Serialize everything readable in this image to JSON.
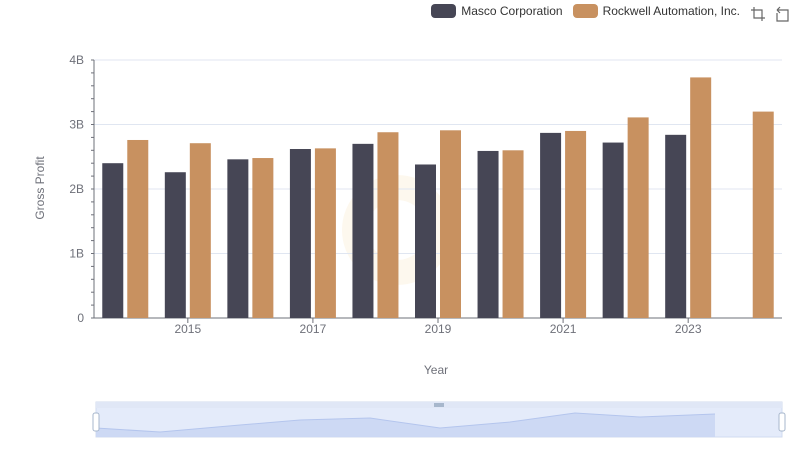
{
  "legend": [
    {
      "name": "Masco Corporation",
      "color": "#464655"
    },
    {
      "name": "Rockwell Automation, Inc.",
      "color": "#c89160"
    }
  ],
  "toolbox": {
    "icons": [
      "zoom-icon",
      "restore-icon"
    ]
  },
  "chart_data": {
    "type": "bar",
    "xlabel": "Year",
    "ylabel": "Gross Profit",
    "categories": [
      "2014",
      "2015",
      "2016",
      "2017",
      "2018",
      "2019",
      "2020",
      "2021",
      "2022",
      "2023",
      "2024"
    ],
    "x_tick_labels": [
      "2015",
      "2017",
      "2019",
      "2021",
      "2023"
    ],
    "y_tick_labels": [
      "0",
      "1B",
      "2B",
      "3B",
      "4B"
    ],
    "ylim": [
      0,
      4000000000
    ],
    "grid": true,
    "legend_position": "top-right",
    "series": [
      {
        "name": "Masco Corporation",
        "color": "#464655",
        "values": [
          2400000000,
          2260000000,
          2460000000,
          2620000000,
          2700000000,
          2380000000,
          2590000000,
          2870000000,
          2720000000,
          2840000000,
          null
        ]
      },
      {
        "name": "Rockwell Automation, Inc.",
        "color": "#c89160",
        "values": [
          2760000000,
          2710000000,
          2480000000,
          2630000000,
          2880000000,
          2910000000,
          2600000000,
          2900000000,
          3110000000,
          3730000000,
          3200000000
        ]
      }
    ]
  }
}
